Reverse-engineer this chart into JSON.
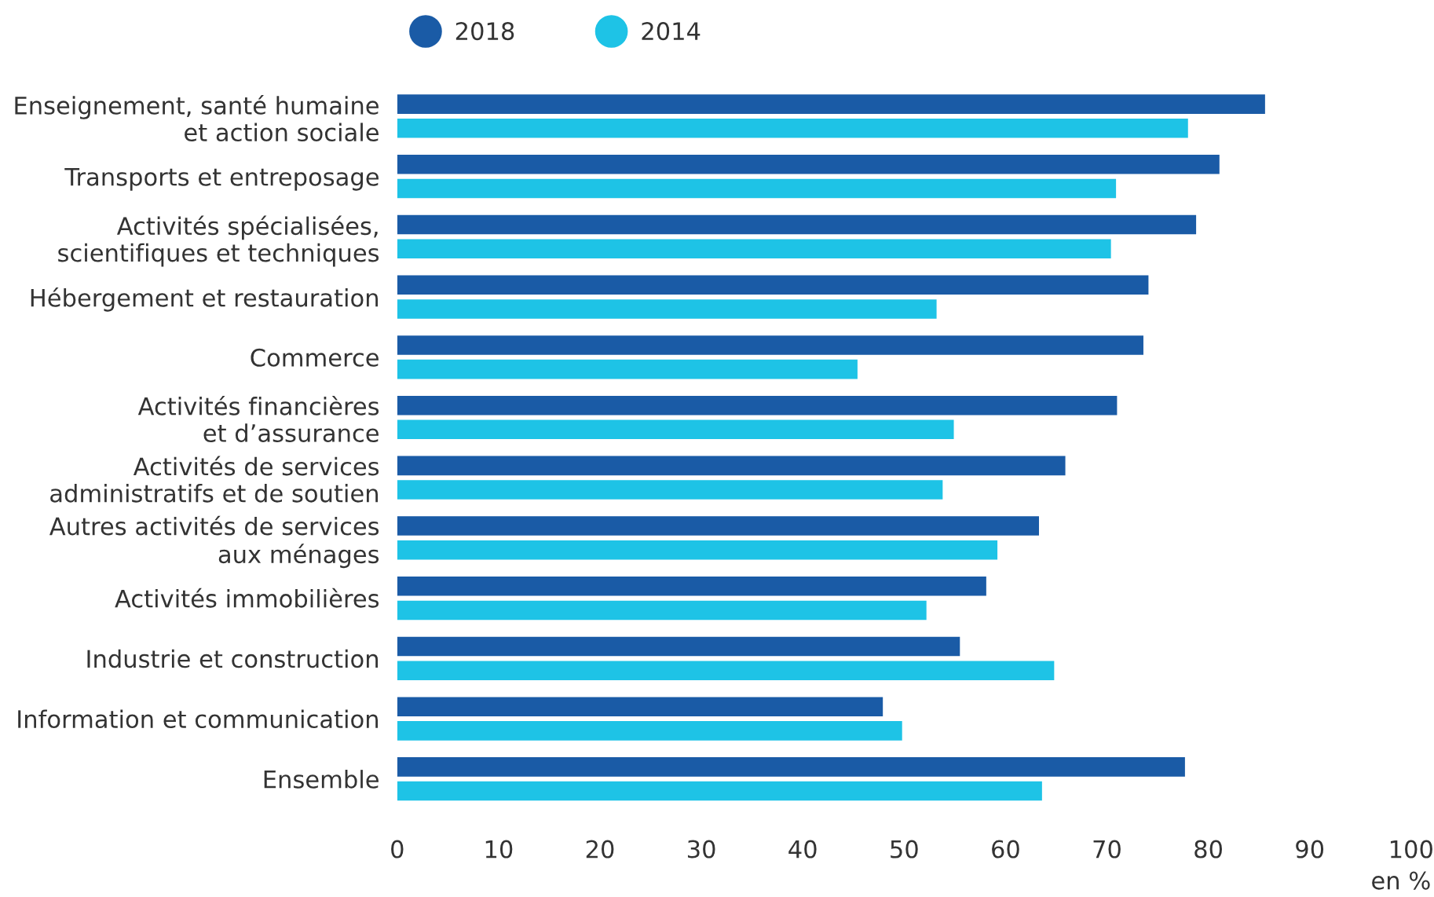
{
  "chart_data": {
    "type": "bar",
    "orientation": "horizontal",
    "categories": [
      "Enseignement, santé humaine\net action sociale",
      "Transports et entreposage",
      "Activités spécialisées,\nscientifiques et techniques",
      "Hébergement et restauration",
      "Commerce",
      "Activités financières\net d’assurance",
      "Activités de services\nadministratifs et de soutien",
      "Autres activités de services\naux ménages",
      "Activités immobilières",
      "Industrie et construction",
      "Information et communication",
      "Ensemble"
    ],
    "series": [
      {
        "name": "2018",
        "color": "#1a5ba6",
        "values": [
          85.6,
          81.1,
          78.8,
          74.1,
          73.6,
          71.0,
          65.9,
          63.3,
          58.1,
          55.5,
          47.9,
          77.7
        ]
      },
      {
        "name": "2014",
        "color": "#1ec3e6",
        "values": [
          78.0,
          70.9,
          70.4,
          53.2,
          45.4,
          54.9,
          53.8,
          59.2,
          52.2,
          64.8,
          49.8,
          63.6
        ]
      }
    ],
    "xlim": [
      0,
      100
    ],
    "xticks": [
      0,
      10,
      20,
      30,
      40,
      50,
      60,
      70,
      80,
      90,
      100
    ],
    "annotations": [
      "en %"
    ],
    "legend": "top left",
    "grid": false
  }
}
